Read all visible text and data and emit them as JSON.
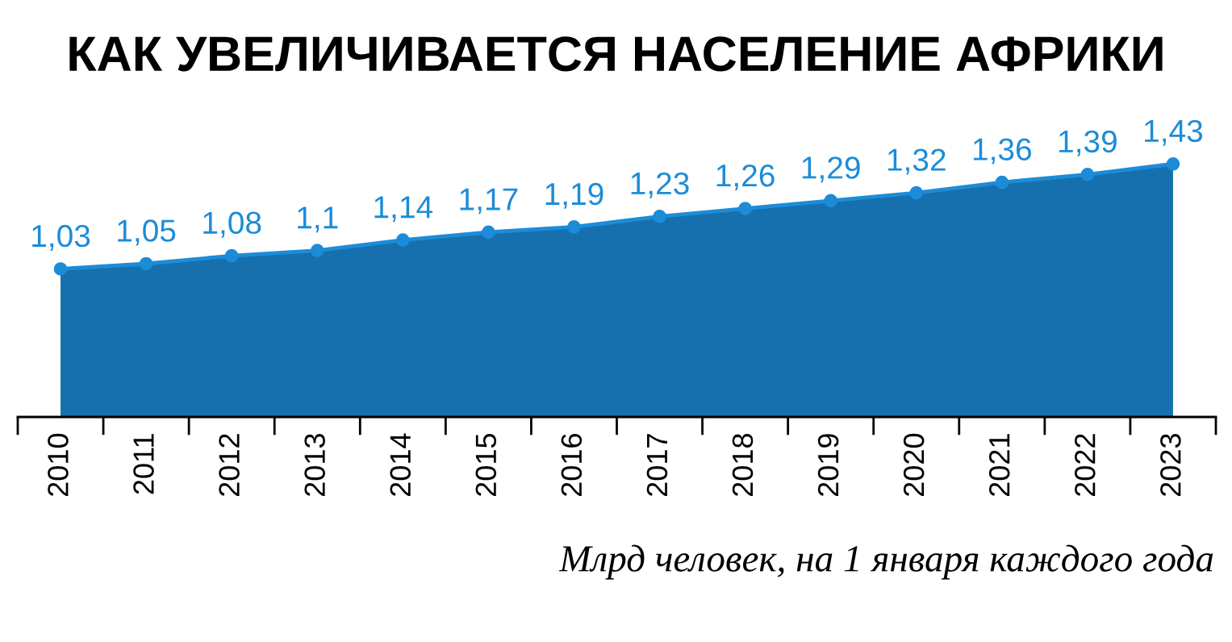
{
  "chart_data": {
    "type": "area",
    "title": "КАК УВЕЛИЧИВАЕТСЯ НАСЕЛЕНИЕ АФРИКИ",
    "categories": [
      "2010",
      "2011",
      "2012",
      "2013",
      "2014",
      "2015",
      "2016",
      "2017",
      "2018",
      "2019",
      "2020",
      "2021",
      "2022",
      "2023"
    ],
    "values": [
      1.03,
      1.05,
      1.08,
      1.1,
      1.14,
      1.17,
      1.19,
      1.23,
      1.26,
      1.29,
      1.32,
      1.36,
      1.39,
      1.43
    ],
    "color": "#1670ad",
    "value_labels": [
      "1,03",
      "1,05",
      "1,08",
      "1,1",
      "1,14",
      "1,17",
      "1,19",
      "1,23",
      "1,26",
      "1,29",
      "1,32",
      "1,36",
      "1,39",
      "1,43"
    ],
    "marker": "circle",
    "tick_labels": "x",
    "grid": false,
    "legend": false,
    "annotations": [
      "Млрд человек, на 1 января каждого года"
    ]
  }
}
